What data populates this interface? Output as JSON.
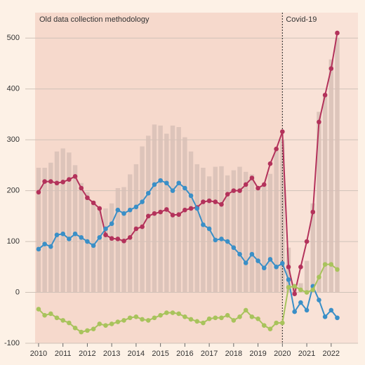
{
  "chart_data": {
    "type": "bar_line",
    "annotations": [
      "Old data collection methodology",
      "Covid-19"
    ],
    "covid_x": 2020,
    "x": [
      2010,
      2010.25,
      2010.5,
      2010.75,
      2011,
      2011.25,
      2011.5,
      2011.75,
      2012,
      2012.25,
      2012.5,
      2012.75,
      2013,
      2013.25,
      2013.5,
      2013.75,
      2014,
      2014.25,
      2014.5,
      2014.75,
      2015,
      2015.25,
      2015.5,
      2015.75,
      2016,
      2016.25,
      2016.5,
      2016.75,
      2017,
      2017.25,
      2017.5,
      2017.75,
      2018,
      2018.25,
      2018.5,
      2018.75,
      2019,
      2019.25,
      2019.5,
      2019.75,
      2020,
      2020.25,
      2020.5,
      2020.75,
      2021,
      2021.25,
      2021.5,
      2021.75,
      2022,
      2022.25
    ],
    "bars": {
      "color": "#d8c0b6",
      "values": [
        245,
        245,
        255,
        277,
        283,
        275,
        250,
        215,
        197,
        180,
        162,
        165,
        175,
        205,
        207,
        232,
        252,
        287,
        308,
        330,
        328,
        312,
        328,
        325,
        305,
        277,
        252,
        245,
        228,
        247,
        248,
        230,
        240,
        247,
        237,
        232,
        205,
        210,
        233,
        280,
        300,
        88,
        12,
        18,
        62,
        175,
        355,
        388,
        458,
        500
      ]
    },
    "series": [
      {
        "color": "#b3325b",
        "values": [
          197,
          218,
          218,
          215,
          217,
          222,
          228,
          205,
          186,
          176,
          165,
          113,
          106,
          105,
          101,
          108,
          125,
          129,
          150,
          155,
          158,
          163,
          152,
          153,
          162,
          165,
          167,
          178,
          180,
          178,
          173,
          193,
          200,
          200,
          212,
          225,
          205,
          212,
          253,
          282,
          316,
          50,
          -3,
          50,
          100,
          158,
          335,
          388,
          440,
          510
        ]
      },
      {
        "color": "#3a8fc7",
        "values": [
          85,
          95,
          90,
          113,
          115,
          105,
          115,
          108,
          100,
          92,
          108,
          125,
          135,
          162,
          155,
          162,
          168,
          178,
          195,
          212,
          220,
          215,
          200,
          215,
          205,
          190,
          165,
          133,
          125,
          103,
          105,
          100,
          88,
          75,
          58,
          75,
          62,
          48,
          65,
          50,
          57,
          25,
          -38,
          -20,
          -35,
          12,
          -15,
          -48,
          -35,
          -50
        ]
      },
      {
        "color": "#a8c35c",
        "values": [
          -33,
          -45,
          -42,
          -50,
          -55,
          -60,
          -70,
          -78,
          -75,
          -72,
          -62,
          -65,
          -62,
          -58,
          -55,
          -50,
          -48,
          -53,
          -55,
          -50,
          -45,
          -40,
          -40,
          -42,
          -48,
          -53,
          -57,
          -60,
          -52,
          -50,
          -50,
          -45,
          -55,
          -48,
          -35,
          -48,
          -52,
          -65,
          -72,
          -60,
          -60,
          10,
          12,
          5,
          0,
          5,
          30,
          55,
          55,
          45
        ]
      }
    ],
    "xlim": [
      2009.8,
      2023.1
    ],
    "xticks": [
      2010,
      2011,
      2012,
      2013,
      2014,
      2015,
      2016,
      2017,
      2018,
      2019,
      2020,
      2021,
      2022
    ],
    "ylim": [
      -100,
      550
    ],
    "yticks": [
      -100,
      0,
      100,
      200,
      300,
      400,
      500
    ],
    "grid": true
  }
}
